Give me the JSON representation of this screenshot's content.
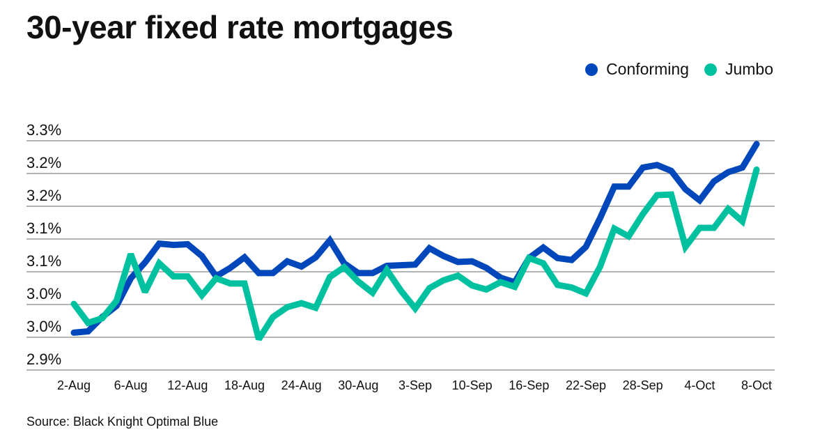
{
  "chart_data": {
    "type": "line",
    "title": "30-year fixed rate mortgages",
    "xlabel": "",
    "ylabel": "",
    "ylim": [
      2.9,
      3.25
    ],
    "yticks": [
      2.9,
      2.95,
      3.0,
      3.05,
      3.1,
      3.15,
      3.2,
      3.25
    ],
    "ytick_labels": [
      "2.9%",
      "3.0%",
      "3.0%",
      "3.1%",
      "3.1%",
      "3.2%",
      "3.2%",
      "3.3%"
    ],
    "xtick_labels": [
      "2-Aug",
      "6-Aug",
      "12-Aug",
      "18-Aug",
      "24-Aug",
      "30-Aug",
      "3-Sep",
      "10-Sep",
      "16-Sep",
      "22-Sep",
      "28-Sep",
      "4-Oct",
      "8-Oct"
    ],
    "xtick_index": [
      0,
      4,
      8,
      12,
      16,
      20,
      24,
      28,
      32,
      36,
      40,
      44,
      48
    ],
    "grid": true,
    "legend_position": "top-right",
    "series": [
      {
        "name": "Conforming",
        "color": "#0047bb",
        "values": [
          2.957,
          2.959,
          2.981,
          2.998,
          3.04,
          3.064,
          3.093,
          3.091,
          3.092,
          3.074,
          3.043,
          3.056,
          3.072,
          3.048,
          3.048,
          3.066,
          3.058,
          3.072,
          3.098,
          3.063,
          3.048,
          3.048,
          3.059,
          3.06,
          3.061,
          3.086,
          3.074,
          3.065,
          3.066,
          3.056,
          3.041,
          3.034,
          3.071,
          3.087,
          3.071,
          3.068,
          3.088,
          3.132,
          3.18,
          3.18,
          3.209,
          3.213,
          3.204,
          3.176,
          3.159,
          3.188,
          3.202,
          3.209,
          3.245
        ]
      },
      {
        "name": "Jumbo",
        "color": "#00c19f",
        "values": [
          3.001,
          2.972,
          2.979,
          3.006,
          3.077,
          3.019,
          3.063,
          3.043,
          3.043,
          3.014,
          3.04,
          3.032,
          3.032,
          2.947,
          2.981,
          2.996,
          3.002,
          2.995,
          3.042,
          3.057,
          3.035,
          3.018,
          3.053,
          3.021,
          2.994,
          3.025,
          3.037,
          3.044,
          3.029,
          3.023,
          3.034,
          3.027,
          3.071,
          3.063,
          3.03,
          3.026,
          3.017,
          3.058,
          3.116,
          3.104,
          3.138,
          3.167,
          3.168,
          3.088,
          3.117,
          3.117,
          3.146,
          3.127,
          3.206
        ]
      }
    ]
  },
  "source": "Source: Black Knight Optimal Blue"
}
